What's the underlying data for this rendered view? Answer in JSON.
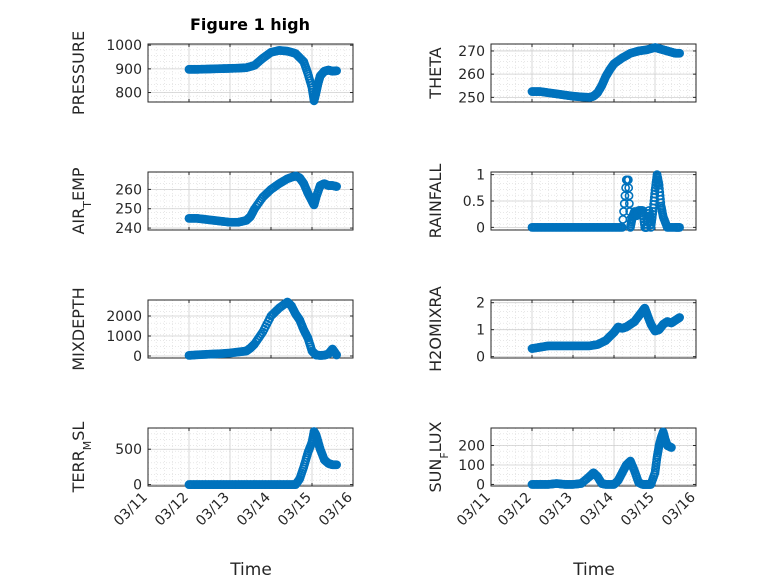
{
  "figure": {
    "title": "Figure 1 high",
    "xlabel": "Time",
    "marker_color": "#0072bd"
  },
  "chart_data": [
    {
      "type": "scatter",
      "ylabel": "PRESSURE",
      "ylabel_html": "PRESSURE",
      "ylim": [
        760,
        1005
      ],
      "yticks": [
        800,
        900,
        1000
      ],
      "x_range": [
        "03/11",
        "03/16"
      ],
      "points": [
        [
          1.0,
          898
        ],
        [
          1.2,
          898
        ],
        [
          1.4,
          899
        ],
        [
          1.6,
          900
        ],
        [
          1.8,
          901
        ],
        [
          2.0,
          902
        ],
        [
          2.2,
          903
        ],
        [
          2.4,
          905
        ],
        [
          2.6,
          915
        ],
        [
          2.8,
          945
        ],
        [
          3.0,
          970
        ],
        [
          3.2,
          978
        ],
        [
          3.4,
          975
        ],
        [
          3.6,
          965
        ],
        [
          3.8,
          930
        ],
        [
          3.9,
          880
        ],
        [
          4.0,
          820
        ],
        [
          4.05,
          765
        ],
        [
          4.1,
          800
        ],
        [
          4.15,
          840
        ],
        [
          4.2,
          870
        ],
        [
          4.3,
          890
        ],
        [
          4.4,
          895
        ],
        [
          4.5,
          890
        ],
        [
          4.6,
          892
        ]
      ]
    },
    {
      "type": "scatter",
      "ylabel": "THETA",
      "ylim": [
        248,
        273
      ],
      "yticks": [
        250,
        260,
        270
      ],
      "x_range": [
        "03/11",
        "03/16"
      ],
      "points": [
        [
          1.0,
          252.5
        ],
        [
          1.2,
          252.5
        ],
        [
          1.4,
          252
        ],
        [
          1.6,
          251.5
        ],
        [
          1.8,
          251
        ],
        [
          2.0,
          250.5
        ],
        [
          2.2,
          250.2
        ],
        [
          2.4,
          250
        ],
        [
          2.5,
          250.5
        ],
        [
          2.6,
          252
        ],
        [
          2.7,
          255
        ],
        [
          2.8,
          259
        ],
        [
          2.9,
          262
        ],
        [
          3.0,
          264.5
        ],
        [
          3.2,
          267
        ],
        [
          3.4,
          269
        ],
        [
          3.6,
          270
        ],
        [
          3.8,
          270.5
        ],
        [
          4.0,
          271.5
        ],
        [
          4.1,
          271
        ],
        [
          4.2,
          270.5
        ],
        [
          4.3,
          270
        ],
        [
          4.4,
          269.5
        ],
        [
          4.5,
          269
        ],
        [
          4.6,
          269
        ]
      ]
    },
    {
      "type": "scatter",
      "ylabel": "AIR_TEMP",
      "ylabel_html": "AIR<tspan baseline-shift='sub' font-size='11'>T</tspan>EMP",
      "ylim": [
        239,
        269
      ],
      "yticks": [
        240,
        250,
        260
      ],
      "x_range": [
        "03/11",
        "03/16"
      ],
      "points": [
        [
          1.0,
          245
        ],
        [
          1.2,
          245
        ],
        [
          1.4,
          244.5
        ],
        [
          1.6,
          244
        ],
        [
          1.8,
          243.5
        ],
        [
          2.0,
          243
        ],
        [
          2.2,
          243
        ],
        [
          2.4,
          244
        ],
        [
          2.5,
          246
        ],
        [
          2.6,
          250
        ],
        [
          2.8,
          256
        ],
        [
          3.0,
          260
        ],
        [
          3.2,
          263
        ],
        [
          3.4,
          265.5
        ],
        [
          3.6,
          267
        ],
        [
          3.7,
          266
        ],
        [
          3.8,
          263
        ],
        [
          3.9,
          258
        ],
        [
          4.0,
          254
        ],
        [
          4.05,
          252
        ],
        [
          4.1,
          256
        ],
        [
          4.2,
          262
        ],
        [
          4.3,
          263
        ],
        [
          4.4,
          262
        ],
        [
          4.5,
          262
        ],
        [
          4.6,
          261.5
        ]
      ]
    },
    {
      "type": "scatter",
      "ylabel": "RAINFALL",
      "ylim": [
        -0.05,
        1.05
      ],
      "yticks": [
        0,
        0.5,
        1
      ],
      "ytick_labels": [
        "0",
        "0.5",
        "1"
      ],
      "x_range": [
        "03/11",
        "03/16"
      ],
      "points": [
        [
          1.0,
          0
        ],
        [
          1.2,
          0
        ],
        [
          1.4,
          0
        ],
        [
          1.6,
          0
        ],
        [
          1.8,
          0
        ],
        [
          2.0,
          0
        ],
        [
          2.2,
          0
        ],
        [
          2.4,
          0
        ],
        [
          2.6,
          0
        ],
        [
          2.8,
          0
        ],
        [
          3.0,
          0
        ],
        [
          3.2,
          0
        ],
        [
          3.3,
          0.9
        ],
        [
          3.35,
          0.9
        ],
        [
          3.4,
          0
        ],
        [
          3.45,
          0.2
        ],
        [
          3.5,
          0.3
        ],
        [
          3.55,
          0.22
        ],
        [
          3.6,
          0.32
        ],
        [
          3.7,
          0.32
        ],
        [
          3.75,
          0
        ],
        [
          3.8,
          0
        ],
        [
          3.85,
          0.32
        ],
        [
          3.9,
          0
        ],
        [
          3.95,
          0.3
        ],
        [
          4.0,
          0.7
        ],
        [
          4.05,
          1.0
        ],
        [
          4.1,
          0.8
        ],
        [
          4.15,
          0.4
        ],
        [
          4.2,
          0.2
        ],
        [
          4.3,
          0
        ],
        [
          4.5,
          0
        ],
        [
          4.6,
          0
        ]
      ]
    },
    {
      "type": "scatter",
      "ylabel": "MIXDEPTH",
      "ylim": [
        -100,
        2800
      ],
      "yticks": [
        0,
        1000,
        2000
      ],
      "x_range": [
        "03/11",
        "03/16"
      ],
      "points": [
        [
          1.0,
          30
        ],
        [
          1.2,
          60
        ],
        [
          1.4,
          80
        ],
        [
          1.6,
          100
        ],
        [
          1.8,
          120
        ],
        [
          2.0,
          150
        ],
        [
          2.2,
          200
        ],
        [
          2.4,
          250
        ],
        [
          2.5,
          400
        ],
        [
          2.6,
          600
        ],
        [
          2.8,
          1200
        ],
        [
          3.0,
          2000
        ],
        [
          3.2,
          2400
        ],
        [
          3.4,
          2700
        ],
        [
          3.5,
          2500
        ],
        [
          3.6,
          2100
        ],
        [
          3.7,
          1800
        ],
        [
          3.8,
          1300
        ],
        [
          3.9,
          900
        ],
        [
          4.0,
          250
        ],
        [
          4.1,
          50
        ],
        [
          4.2,
          30
        ],
        [
          4.3,
          40
        ],
        [
          4.4,
          100
        ],
        [
          4.5,
          350
        ],
        [
          4.6,
          50
        ]
      ]
    },
    {
      "type": "scatter",
      "ylabel": "H2OMIXRA",
      "ylim": [
        -0.05,
        2.1
      ],
      "yticks": [
        0,
        1,
        2
      ],
      "x_range": [
        "03/11",
        "03/16"
      ],
      "points": [
        [
          1.0,
          0.3
        ],
        [
          1.2,
          0.35
        ],
        [
          1.4,
          0.4
        ],
        [
          1.6,
          0.4
        ],
        [
          1.8,
          0.4
        ],
        [
          2.0,
          0.4
        ],
        [
          2.2,
          0.4
        ],
        [
          2.4,
          0.4
        ],
        [
          2.6,
          0.45
        ],
        [
          2.8,
          0.6
        ],
        [
          3.0,
          0.9
        ],
        [
          3.1,
          1.1
        ],
        [
          3.2,
          1.05
        ],
        [
          3.3,
          1.1
        ],
        [
          3.4,
          1.2
        ],
        [
          3.5,
          1.3
        ],
        [
          3.6,
          1.5
        ],
        [
          3.7,
          1.7
        ],
        [
          3.75,
          1.8
        ],
        [
          3.8,
          1.6
        ],
        [
          3.9,
          1.2
        ],
        [
          4.0,
          0.95
        ],
        [
          4.1,
          1.0
        ],
        [
          4.2,
          1.2
        ],
        [
          4.3,
          1.3
        ],
        [
          4.4,
          1.25
        ],
        [
          4.5,
          1.35
        ],
        [
          4.6,
          1.45
        ]
      ]
    },
    {
      "type": "scatter",
      "ylabel": "TERR_MSL",
      "ylabel_html": "TERR<tspan baseline-shift='sub' font-size='11'>M</tspan>SL",
      "ylim": [
        -20,
        800
      ],
      "yticks": [
        0,
        500
      ],
      "x_range": [
        "03/11",
        "03/16"
      ],
      "points": [
        [
          1.0,
          0
        ],
        [
          1.2,
          0
        ],
        [
          1.4,
          0
        ],
        [
          1.6,
          0
        ],
        [
          1.8,
          0
        ],
        [
          2.0,
          0
        ],
        [
          2.2,
          0
        ],
        [
          2.4,
          0
        ],
        [
          2.6,
          0
        ],
        [
          2.8,
          0
        ],
        [
          3.0,
          0
        ],
        [
          3.2,
          0
        ],
        [
          3.4,
          0
        ],
        [
          3.6,
          0
        ],
        [
          3.7,
          80
        ],
        [
          3.8,
          250
        ],
        [
          3.9,
          450
        ],
        [
          4.0,
          600
        ],
        [
          4.05,
          750
        ],
        [
          4.1,
          700
        ],
        [
          4.15,
          600
        ],
        [
          4.2,
          500
        ],
        [
          4.3,
          350
        ],
        [
          4.4,
          300
        ],
        [
          4.5,
          280
        ],
        [
          4.6,
          280
        ]
      ]
    },
    {
      "type": "scatter",
      "ylabel": "SUN_FLUX",
      "ylabel_html": "SUN<tspan baseline-shift='sub' font-size='11'>F</tspan>LUX",
      "ylim": [
        -8,
        290
      ],
      "yticks": [
        0,
        100,
        200
      ],
      "x_range": [
        "03/11",
        "03/16"
      ],
      "points": [
        [
          1.0,
          0
        ],
        [
          1.2,
          0
        ],
        [
          1.4,
          0
        ],
        [
          1.6,
          5
        ],
        [
          1.8,
          0
        ],
        [
          2.0,
          0
        ],
        [
          2.2,
          5
        ],
        [
          2.4,
          40
        ],
        [
          2.5,
          60
        ],
        [
          2.6,
          40
        ],
        [
          2.7,
          5
        ],
        [
          2.8,
          0
        ],
        [
          3.0,
          0
        ],
        [
          3.1,
          20
        ],
        [
          3.2,
          60
        ],
        [
          3.3,
          100
        ],
        [
          3.4,
          120
        ],
        [
          3.5,
          70
        ],
        [
          3.6,
          10
        ],
        [
          3.7,
          0
        ],
        [
          3.8,
          0
        ],
        [
          3.9,
          0
        ],
        [
          4.0,
          60
        ],
        [
          4.05,
          140
        ],
        [
          4.1,
          200
        ],
        [
          4.15,
          240
        ],
        [
          4.2,
          270
        ],
        [
          4.25,
          230
        ],
        [
          4.3,
          200
        ],
        [
          4.4,
          190
        ]
      ]
    }
  ],
  "x_ticks": [
    "03/11",
    "03/12",
    "03/13",
    "03/14",
    "03/15",
    "03/16"
  ]
}
